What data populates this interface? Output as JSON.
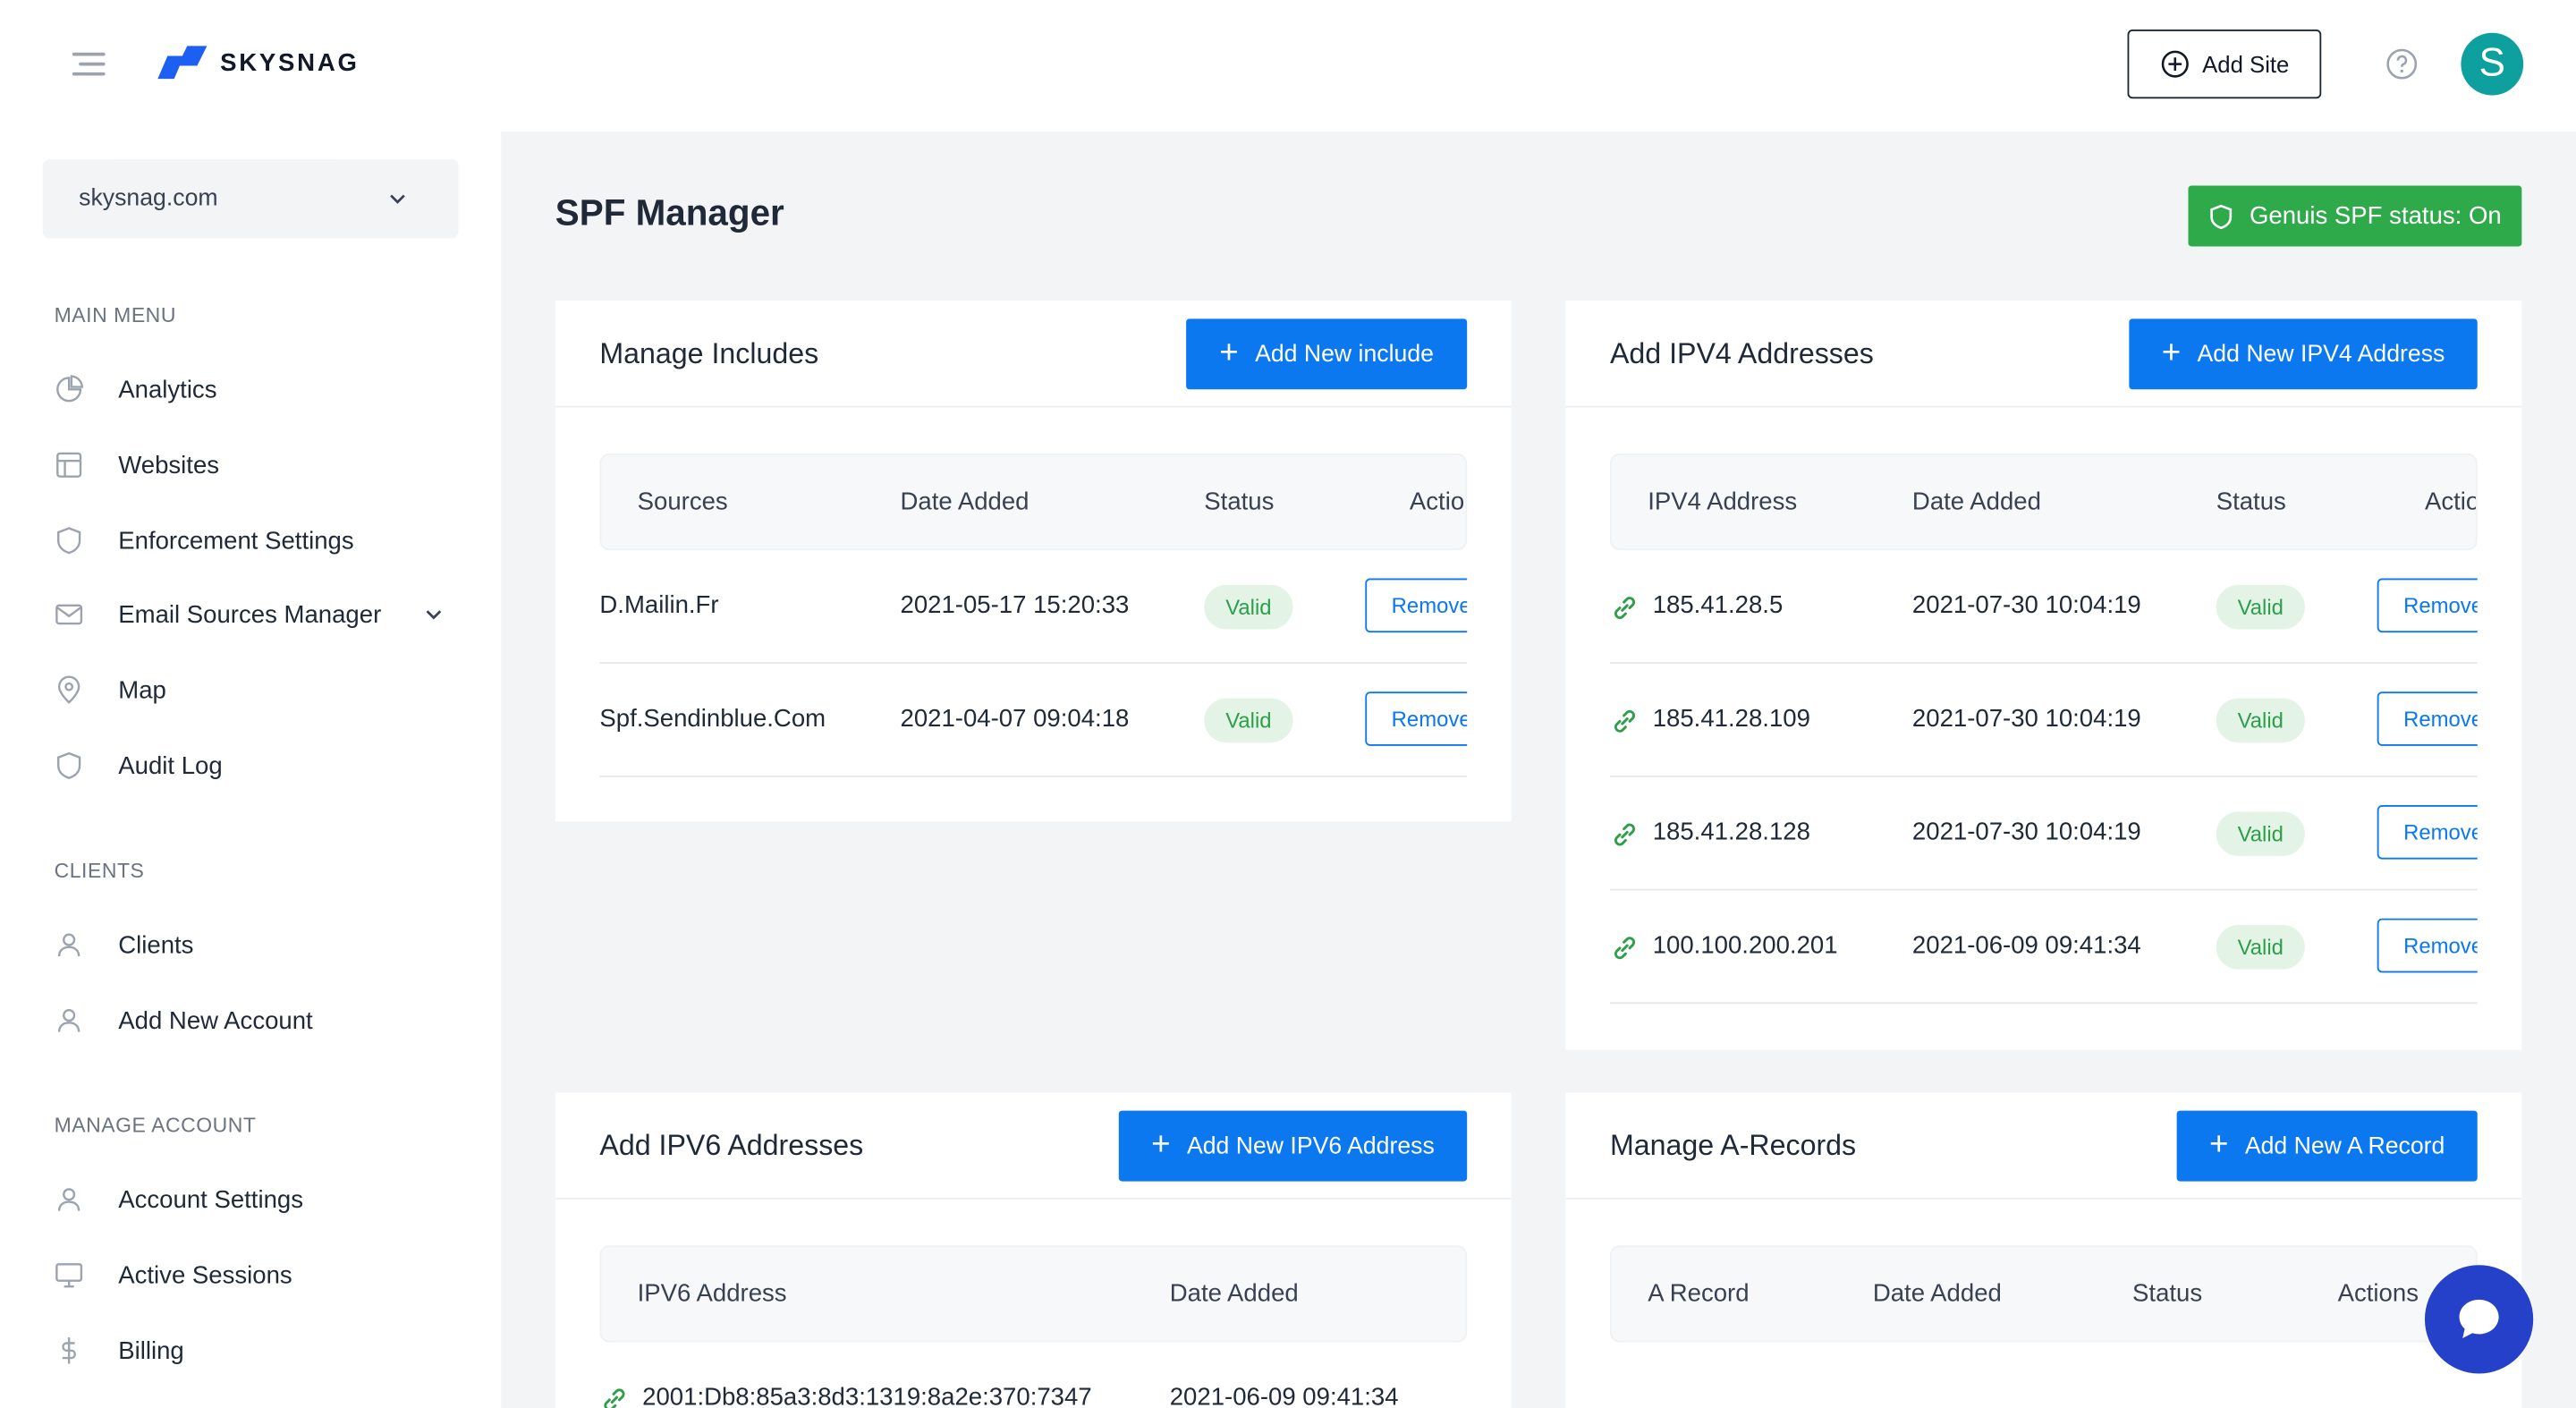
{
  "header": {
    "logo_text": "SKYSNAG",
    "add_site_label": "Add Site",
    "avatar_letter": "S"
  },
  "sidebar": {
    "site_selected": "skysnag.com",
    "main_menu_label": "MAIN MENU",
    "main_menu": [
      {
        "label": "Analytics",
        "icon": "pie-chart-icon"
      },
      {
        "label": "Websites",
        "icon": "layout-icon"
      },
      {
        "label": "Enforcement Settings",
        "icon": "shield-icon"
      },
      {
        "label": "Email Sources Manager",
        "icon": "mail-icon"
      },
      {
        "label": "Map",
        "icon": "map-pin-icon"
      },
      {
        "label": "Audit Log",
        "icon": "shield-icon"
      }
    ],
    "clients_label": "CLIENTS",
    "clients": [
      {
        "label": "Clients",
        "icon": "user-icon"
      },
      {
        "label": "Add New Account",
        "icon": "user-icon"
      }
    ],
    "manage_account_label": "MANAGE ACCOUNT",
    "manage_account": [
      {
        "label": "Account Settings",
        "icon": "user-icon"
      },
      {
        "label": "Active Sessions",
        "icon": "monitor-icon"
      },
      {
        "label": "Billing",
        "icon": "dollar-icon"
      }
    ]
  },
  "main": {
    "page_title": "SPF Manager",
    "genius_status": "Genuis SPF status: On",
    "includes": {
      "title": "Manage Includes",
      "button": "Add New include",
      "columns": [
        "Sources",
        "Date Added",
        "Status",
        "Actions"
      ],
      "rows": [
        {
          "source": "D.Mailin.Fr",
          "date": "2021-05-17 15:20:33",
          "status": "Valid",
          "action": "Remove"
        },
        {
          "source": "Spf.Sendinblue.Com",
          "date": "2021-04-07 09:04:18",
          "status": "Valid",
          "action": "Remove"
        }
      ]
    },
    "ipv4": {
      "title": "Add IPV4 Addresses",
      "button": "Add New IPV4 Address",
      "columns": [
        "IPV4 Address",
        "Date Added",
        "Status",
        "Actions"
      ],
      "rows": [
        {
          "address": "185.41.28.5",
          "date": "2021-07-30 10:04:19",
          "status": "Valid",
          "action": "Remove"
        },
        {
          "address": "185.41.28.109",
          "date": "2021-07-30 10:04:19",
          "status": "Valid",
          "action": "Remove"
        },
        {
          "address": "185.41.28.128",
          "date": "2021-07-30 10:04:19",
          "status": "Valid",
          "action": "Remove"
        },
        {
          "address": "100.100.200.201",
          "date": "2021-06-09 09:41:34",
          "status": "Valid",
          "action": "Remove"
        }
      ]
    },
    "ipv6": {
      "title": "Add IPV6 Addresses",
      "button": "Add New IPV6 Address",
      "columns": [
        "IPV6 Address",
        "Date Added"
      ],
      "rows": [
        {
          "address": "2001:Db8:85a3:8d3:1319:8a2e:370:7347",
          "date": "2021-06-09 09:41:34"
        }
      ]
    },
    "arecords": {
      "title": "Manage A-Records",
      "button": "Add New A Record",
      "columns": [
        "A Record",
        "Date Added",
        "Status",
        "Actions"
      ]
    }
  },
  "colors": {
    "primary": "#0b78f0",
    "success": "#2eaa4a",
    "avatar": "#0e9f9f",
    "chat": "#2540c9"
  }
}
